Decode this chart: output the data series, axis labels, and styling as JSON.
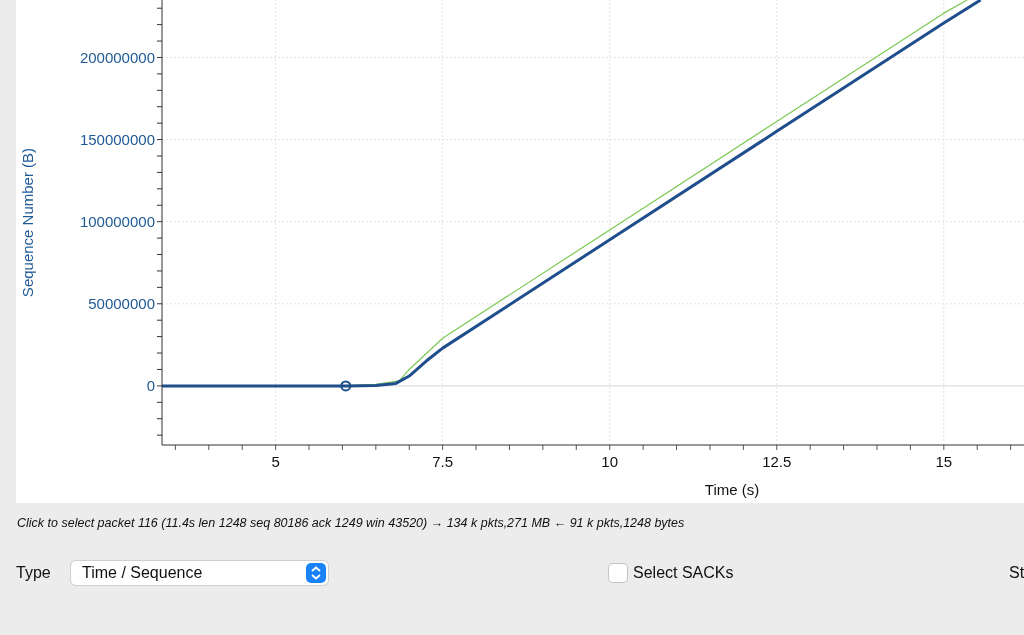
{
  "chart_data": {
    "type": "line",
    "xlabel": "Time (s)",
    "ylabel": "Sequence Number (B)",
    "xlim": [
      3.3,
      16.2
    ],
    "xticks": [
      {
        "value": 3.5,
        "label": null
      },
      {
        "value": 4,
        "label": null
      },
      {
        "value": 4.5,
        "label": null
      },
      5,
      {
        "value": 5.5,
        "label": null
      },
      {
        "value": 6,
        "label": null
      },
      {
        "value": 6.5,
        "label": null
      },
      {
        "value": 7,
        "label": null
      },
      7.5,
      {
        "value": 8,
        "label": null
      },
      {
        "value": 8.5,
        "label": null
      },
      {
        "value": 9,
        "label": null
      },
      {
        "value": 9.5,
        "label": null
      },
      10,
      {
        "value": 10.5,
        "label": null
      },
      {
        "value": 11,
        "label": null
      },
      {
        "value": 11.5,
        "label": null
      },
      {
        "value": 12,
        "label": null
      },
      12.5,
      {
        "value": 13,
        "label": null
      },
      {
        "value": 13.5,
        "label": null
      },
      {
        "value": 14,
        "label": null
      },
      {
        "value": 14.5,
        "label": null
      },
      15,
      {
        "value": 15.5,
        "label": null
      },
      {
        "value": 16,
        "label": null
      }
    ],
    "ylim": [
      -36000000,
      235000000
    ],
    "yticks": [
      {
        "value": -30000000,
        "label": null
      },
      {
        "value": -20000000,
        "label": null
      },
      {
        "value": -10000000,
        "label": null
      },
      0,
      {
        "value": 10000000,
        "label": null
      },
      {
        "value": 20000000,
        "label": null
      },
      {
        "value": 30000000,
        "label": null
      },
      {
        "value": 40000000,
        "label": null
      },
      50000000,
      {
        "value": 60000000,
        "label": null
      },
      {
        "value": 70000000,
        "label": null
      },
      {
        "value": 80000000,
        "label": null
      },
      {
        "value": 90000000,
        "label": null
      },
      100000000,
      {
        "value": 110000000,
        "label": null
      },
      {
        "value": 120000000,
        "label": null
      },
      {
        "value": 130000000,
        "label": null
      },
      {
        "value": 140000000,
        "label": null
      },
      150000000,
      {
        "value": 160000000,
        "label": null
      },
      {
        "value": 170000000,
        "label": null
      },
      {
        "value": 180000000,
        "label": null
      },
      {
        "value": 190000000,
        "label": null
      },
      200000000,
      {
        "value": 210000000,
        "label": null
      },
      {
        "value": 220000000,
        "label": null
      },
      {
        "value": 230000000,
        "label": null
      }
    ],
    "grid": true,
    "marker": "none",
    "series": [
      {
        "color": "#7cc855",
        "x": [
          3.3,
          6.05,
          6.5,
          6.85,
          7.0,
          7.5,
          10,
          12.5,
          15,
          15.35
        ],
        "values": [
          0,
          0,
          1000000,
          3000000,
          10000000,
          29000000,
          95000000,
          161000000,
          227000000,
          235000000
        ]
      },
      {
        "color": "#1f4e8c",
        "x": [
          3.3,
          6.05,
          6.5,
          6.8,
          7.0,
          7.25,
          7.5,
          10,
          12.5,
          15,
          15.55
        ],
        "values": [
          0,
          0,
          300000,
          1500000,
          6000000,
          15000000,
          23000000,
          89000000,
          155000000,
          221000000,
          235000000
        ]
      },
      {
        "type": "scatter",
        "marker": "circle",
        "color": "#1f4e8c",
        "x": [
          6.05
        ],
        "values": [
          0
        ]
      }
    ],
    "annotations": [
      "Click to select packet 116 (11.4s len 1248 seq 80186 ack 1249 win 43520) → 134 k pkts,271 MB ← 91 k pkts,1248 bytes",
      "Type",
      "Time / Sequence",
      "Select SACKs",
      "St"
    ]
  }
}
